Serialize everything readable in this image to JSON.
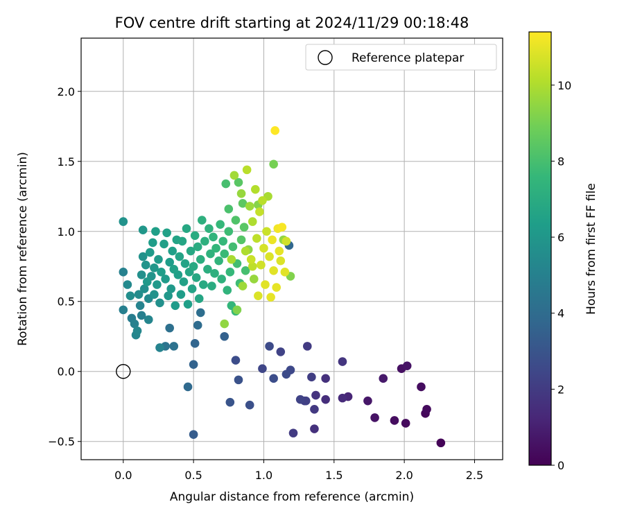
{
  "chart_data": {
    "type": "scatter",
    "title": "FOV centre drift starting at 2024/11/29 00:18:48",
    "xlabel": "Angular distance from reference (arcmin)",
    "ylabel": "Rotation from reference (arcmin)",
    "xlim": [
      -0.3,
      2.7
    ],
    "ylim": [
      -0.63,
      2.38
    ],
    "xticks": [
      "0.0",
      "0.5",
      "1.0",
      "1.5",
      "2.0",
      "2.5"
    ],
    "yticks": [
      "−0.5",
      "0.0",
      "0.5",
      "1.0",
      "1.5",
      "2.0"
    ],
    "grid": true,
    "legend": {
      "position": "top-right",
      "entries": [
        "Reference platepar"
      ]
    },
    "reference_point": {
      "x": 0.0,
      "y": 0.0,
      "label": "Reference platepar"
    },
    "colorbar": {
      "label": "Hours from first FF file",
      "range": [
        0,
        11.4
      ],
      "ticks": [
        "0",
        "2",
        "4",
        "6",
        "8",
        "10"
      ],
      "colormap": "viridis"
    },
    "colormap_stops": [
      "#440154",
      "#482878",
      "#3e4989",
      "#31688e",
      "#26828e",
      "#1f9e89",
      "#35b779",
      "#6ece58",
      "#b5de2b",
      "#fde725"
    ],
    "series": [
      {
        "points": [
          [
            2.26,
            -0.51,
            0.1
          ],
          [
            2.01,
            -0.37,
            0.3
          ],
          [
            1.93,
            -0.35,
            0.4
          ],
          [
            2.15,
            -0.3,
            0.2
          ],
          [
            2.16,
            -0.27,
            0.3
          ],
          [
            1.79,
            -0.33,
            0.6
          ],
          [
            1.74,
            -0.21,
            0.7
          ],
          [
            2.12,
            -0.11,
            0.4
          ],
          [
            1.98,
            0.02,
            0.5
          ],
          [
            2.02,
            0.04,
            0.6
          ],
          [
            1.85,
            -0.05,
            0.8
          ],
          [
            1.6,
            -0.18,
            1.2
          ],
          [
            1.56,
            -0.19,
            1.4
          ],
          [
            1.56,
            0.07,
            1.8
          ],
          [
            1.44,
            -0.05,
            1.6
          ],
          [
            1.44,
            -0.2,
            1.5
          ],
          [
            1.37,
            -0.17,
            1.7
          ],
          [
            1.36,
            -0.41,
            1.6
          ],
          [
            1.36,
            -0.27,
            1.9
          ],
          [
            1.34,
            -0.04,
            2.1
          ],
          [
            1.31,
            0.18,
            2.0
          ],
          [
            1.3,
            -0.21,
            2.2
          ],
          [
            1.29,
            -0.21,
            2.1
          ],
          [
            1.26,
            -0.2,
            2.3
          ],
          [
            1.21,
            -0.44,
            2.0
          ],
          [
            1.19,
            0.01,
            2.5
          ],
          [
            1.16,
            -0.02,
            2.6
          ],
          [
            1.12,
            0.14,
            2.3
          ],
          [
            1.07,
            -0.05,
            2.7
          ],
          [
            1.04,
            0.18,
            2.6
          ],
          [
            0.99,
            0.02,
            2.4
          ],
          [
            0.9,
            -0.24,
            2.8
          ],
          [
            0.82,
            -0.06,
            2.9
          ],
          [
            0.8,
            0.08,
            2.7
          ],
          [
            0.76,
            -0.22,
            3.0
          ],
          [
            0.72,
            0.25,
            3.5
          ],
          [
            0.5,
            -0.45,
            3.3
          ],
          [
            0.5,
            0.05,
            3.6
          ],
          [
            0.51,
            0.2,
            3.7
          ],
          [
            0.46,
            -0.11,
            3.9
          ],
          [
            0.53,
            0.33,
            4.0
          ],
          [
            0.55,
            0.42,
            4.1
          ],
          [
            0.33,
            0.31,
            4.2
          ],
          [
            0.36,
            0.18,
            4.3
          ],
          [
            0.3,
            0.18,
            4.4
          ],
          [
            1.18,
            0.9,
            3.8
          ],
          [
            0.0,
            1.07,
            5.8
          ],
          [
            0.0,
            0.71,
            5.0
          ],
          [
            0.0,
            0.44,
            4.9
          ],
          [
            0.03,
            0.62,
            5.4
          ],
          [
            0.05,
            0.54,
            5.6
          ],
          [
            0.06,
            0.38,
            4.8
          ],
          [
            0.08,
            0.34,
            5.0
          ],
          [
            0.09,
            0.26,
            5.2
          ],
          [
            0.1,
            0.29,
            5.3
          ],
          [
            0.11,
            0.55,
            5.5
          ],
          [
            0.12,
            0.47,
            5.1
          ],
          [
            0.13,
            0.69,
            5.7
          ],
          [
            0.13,
            0.4,
            4.9
          ],
          [
            0.14,
            0.82,
            5.8
          ],
          [
            0.14,
            1.01,
            6.0
          ],
          [
            0.15,
            0.59,
            5.6
          ],
          [
            0.16,
            0.76,
            5.9
          ],
          [
            0.17,
            0.64,
            6.1
          ],
          [
            0.18,
            0.52,
            5.4
          ],
          [
            0.18,
            0.37,
            5.2
          ],
          [
            0.19,
            0.85,
            6.2
          ],
          [
            0.2,
            0.68,
            5.9
          ],
          [
            0.21,
            0.92,
            6.3
          ],
          [
            0.22,
            0.74,
            6.0
          ],
          [
            0.22,
            0.55,
            5.8
          ],
          [
            0.23,
            1.0,
            6.4
          ],
          [
            0.24,
            0.62,
            6.1
          ],
          [
            0.25,
            0.8,
            6.2
          ],
          [
            0.26,
            0.49,
            5.7
          ],
          [
            0.26,
            0.17,
            5.1
          ],
          [
            0.27,
            0.71,
            6.3
          ],
          [
            0.29,
            0.91,
            6.4
          ],
          [
            0.3,
            0.66,
            6.2
          ],
          [
            0.31,
            0.99,
            6.5
          ],
          [
            0.32,
            0.54,
            6.0
          ],
          [
            0.33,
            0.78,
            6.3
          ],
          [
            0.34,
            0.59,
            6.1
          ],
          [
            0.35,
            0.86,
            6.4
          ],
          [
            0.36,
            0.73,
            6.5
          ],
          [
            0.37,
            0.47,
            6.2
          ],
          [
            0.38,
            0.94,
            6.6
          ],
          [
            0.39,
            0.69,
            6.4
          ],
          [
            0.4,
            0.82,
            6.6
          ],
          [
            0.41,
            0.55,
            6.3
          ],
          [
            0.42,
            0.93,
            6.7
          ],
          [
            0.43,
            0.64,
            6.5
          ],
          [
            0.44,
            0.77,
            6.6
          ],
          [
            0.45,
            1.02,
            6.8
          ],
          [
            0.46,
            0.48,
            6.4
          ],
          [
            0.47,
            0.71,
            6.7
          ],
          [
            0.48,
            0.86,
            6.8
          ],
          [
            0.49,
            0.59,
            6.6
          ],
          [
            0.5,
            0.75,
            6.9
          ],
          [
            0.51,
            0.97,
            7.0
          ],
          [
            0.52,
            0.67,
            6.8
          ],
          [
            0.53,
            0.89,
            7.0
          ],
          [
            0.54,
            0.52,
            6.7
          ],
          [
            0.55,
            0.8,
            7.1
          ],
          [
            0.56,
            1.08,
            7.2
          ],
          [
            0.57,
            0.62,
            6.9
          ],
          [
            0.58,
            0.93,
            7.2
          ],
          [
            0.6,
            0.73,
            7.1
          ],
          [
            0.61,
            1.02,
            7.3
          ],
          [
            0.62,
            0.84,
            7.3
          ],
          [
            0.63,
            0.61,
            7.0
          ],
          [
            0.64,
            0.96,
            7.4
          ],
          [
            0.65,
            0.7,
            7.2
          ],
          [
            0.66,
            0.88,
            7.5
          ],
          [
            0.68,
            0.79,
            7.4
          ],
          [
            0.69,
            1.05,
            7.6
          ],
          [
            0.7,
            0.66,
            7.3
          ],
          [
            0.71,
            0.93,
            7.6
          ],
          [
            0.72,
            0.84,
            7.7
          ],
          [
            0.73,
            1.34,
            8.0
          ],
          [
            0.74,
            0.58,
            7.4
          ],
          [
            0.75,
            1.0,
            7.8
          ],
          [
            0.75,
            1.16,
            8.1
          ],
          [
            0.76,
            0.71,
            7.6
          ],
          [
            0.77,
            0.47,
            7.5
          ],
          [
            0.78,
            0.89,
            7.9
          ],
          [
            0.8,
            0.43,
            7.7
          ],
          [
            0.8,
            1.08,
            8.2
          ],
          [
            0.81,
            0.77,
            7.9
          ],
          [
            0.82,
            1.35,
            8.4
          ],
          [
            0.83,
            0.63,
            7.8
          ],
          [
            0.84,
            0.94,
            8.3
          ],
          [
            0.85,
            1.2,
            8.5
          ],
          [
            0.86,
            1.03,
            8.4
          ],
          [
            0.87,
            0.72,
            8.0
          ],
          [
            0.72,
            0.34,
            9.5
          ],
          [
            0.81,
            0.44,
            9.2
          ],
          [
            0.88,
            1.44,
            10.2
          ],
          [
            0.79,
            1.4,
            9.8
          ],
          [
            0.84,
            1.27,
            9.6
          ],
          [
            0.89,
            0.87,
            9.4
          ],
          [
            0.9,
            1.18,
            9.7
          ],
          [
            0.91,
            0.8,
            10.5
          ],
          [
            0.92,
            1.07,
            10.0
          ],
          [
            0.93,
            0.66,
            9.6
          ],
          [
            0.94,
            1.3,
            10.1
          ],
          [
            0.95,
            0.95,
            10.3
          ],
          [
            0.96,
            0.54,
            10.8
          ],
          [
            0.97,
            1.14,
            10.4
          ],
          [
            0.98,
            0.76,
            10.6
          ],
          [
            0.99,
            1.22,
            10.2
          ],
          [
            1.0,
            0.88,
            10.7
          ],
          [
            1.01,
            0.62,
            10.9
          ],
          [
            1.02,
            1.0,
            10.5
          ],
          [
            1.03,
            1.25,
            9.9
          ],
          [
            1.04,
            0.82,
            10.8
          ],
          [
            1.05,
            0.53,
            11.0
          ],
          [
            1.06,
            0.94,
            11.1
          ],
          [
            1.07,
            0.72,
            10.9
          ],
          [
            1.08,
            1.72,
            11.4
          ],
          [
            1.09,
            0.6,
            11.0
          ],
          [
            1.1,
            1.02,
            11.2
          ],
          [
            1.11,
            0.86,
            11.0
          ],
          [
            1.12,
            0.79,
            10.8
          ],
          [
            1.13,
            1.03,
            11.3
          ],
          [
            1.15,
            0.71,
            10.9
          ],
          [
            1.16,
            0.93,
            10.6
          ],
          [
            1.07,
            1.48,
            9.0
          ],
          [
            1.19,
            0.68,
            9.2
          ],
          [
            1.14,
            0.94,
            9.5
          ],
          [
            0.87,
            0.86,
            10.0
          ],
          [
            0.85,
            0.61,
            9.7
          ],
          [
            0.77,
            0.8,
            9.9
          ],
          [
            0.96,
            1.19,
            9.3
          ],
          [
            0.92,
            0.75,
            10.3
          ]
        ]
      }
    ]
  }
}
